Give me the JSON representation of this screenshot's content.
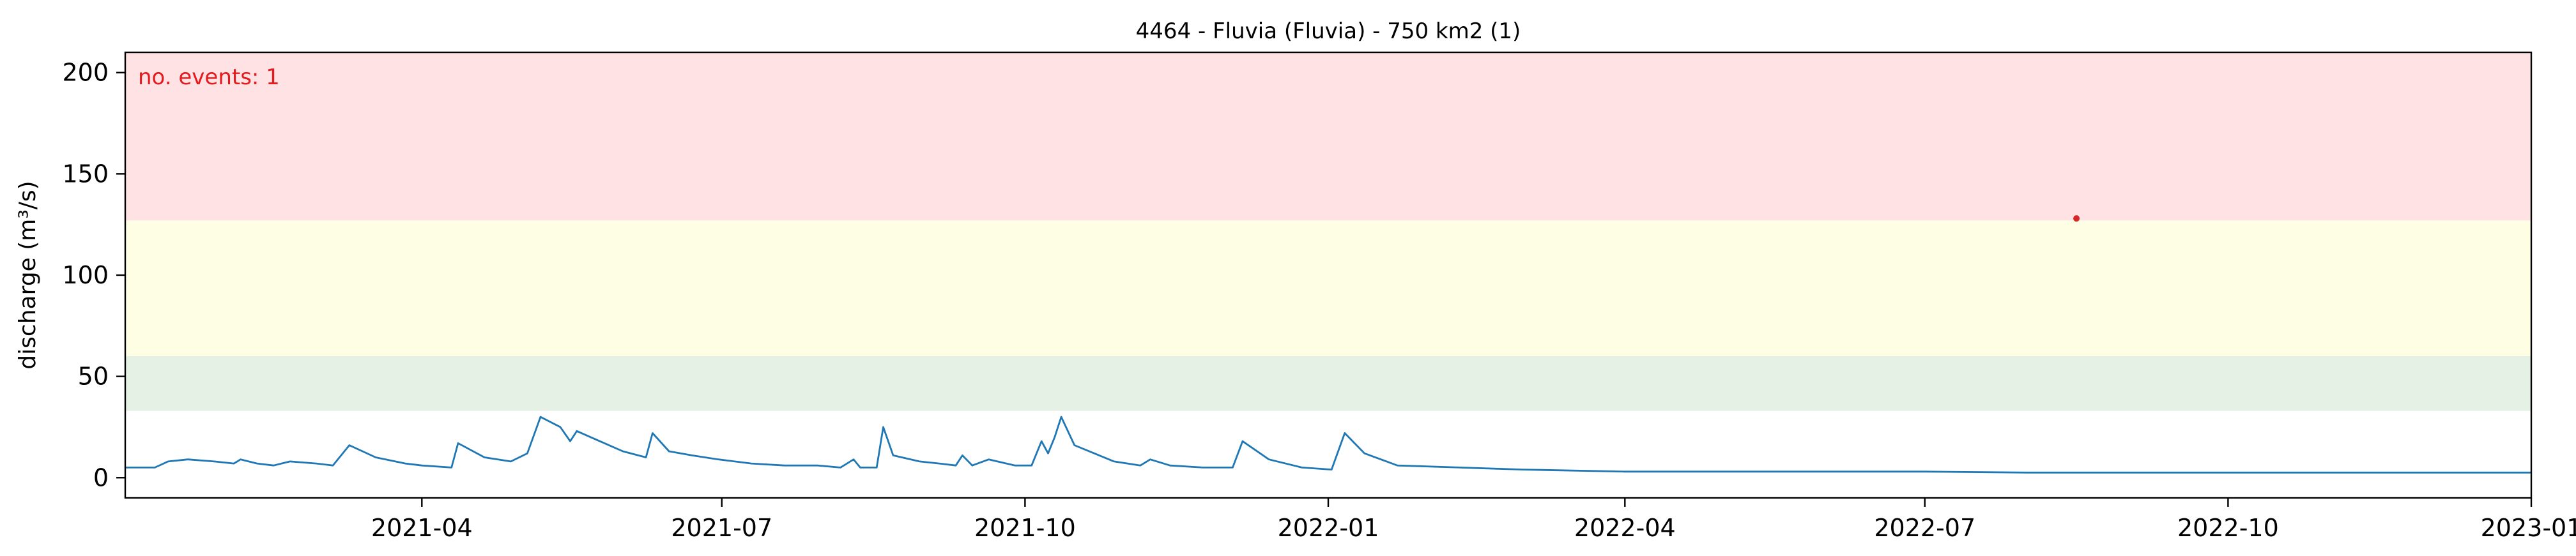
{
  "chart_data": {
    "type": "line",
    "title": "4464 - Fluvia (Fluvia) - 750 km2 (1)",
    "ylabel": "discharge (m³/s)",
    "xlabel": "",
    "annotation": "no. events: 1",
    "xlim": [
      "2021-01-01",
      "2023-01-01"
    ],
    "ylim": [
      -10,
      210
    ],
    "xticks": [
      {
        "date": "2021-04-01",
        "label": "2021-04"
      },
      {
        "date": "2021-07-01",
        "label": "2021-07"
      },
      {
        "date": "2021-10-01",
        "label": "2021-10"
      },
      {
        "date": "2022-01-01",
        "label": "2022-01"
      },
      {
        "date": "2022-04-01",
        "label": "2022-04"
      },
      {
        "date": "2022-07-01",
        "label": "2022-07"
      },
      {
        "date": "2022-10-01",
        "label": "2022-10"
      },
      {
        "date": "2023-01-01",
        "label": "2023-01"
      }
    ],
    "yticks": [
      0,
      50,
      100,
      150,
      200
    ],
    "bands": [
      {
        "from": 33,
        "to": 60,
        "color": "#e5f1e5"
      },
      {
        "from": 60,
        "to": 127,
        "color": "#fefee4"
      },
      {
        "from": 127,
        "to": 210,
        "color": "#fee2e4"
      }
    ],
    "series": [
      {
        "color": "#1f77b4",
        "points": [
          [
            "2021-01-01",
            5
          ],
          [
            "2021-01-10",
            5
          ],
          [
            "2021-01-14",
            8
          ],
          [
            "2021-01-20",
            9
          ],
          [
            "2021-01-28",
            8
          ],
          [
            "2021-02-03",
            7
          ],
          [
            "2021-02-05",
            9
          ],
          [
            "2021-02-10",
            7
          ],
          [
            "2021-02-15",
            6
          ],
          [
            "2021-02-20",
            8
          ],
          [
            "2021-02-28",
            7
          ],
          [
            "2021-03-05",
            6
          ],
          [
            "2021-03-10",
            16
          ],
          [
            "2021-03-18",
            10
          ],
          [
            "2021-03-27",
            7
          ],
          [
            "2021-04-01",
            6
          ],
          [
            "2021-04-10",
            5
          ],
          [
            "2021-04-12",
            17
          ],
          [
            "2021-04-20",
            10
          ],
          [
            "2021-04-28",
            8
          ],
          [
            "2021-05-03",
            12
          ],
          [
            "2021-05-07",
            30
          ],
          [
            "2021-05-13",
            25
          ],
          [
            "2021-05-16",
            18
          ],
          [
            "2021-05-18",
            23
          ],
          [
            "2021-05-25",
            18
          ],
          [
            "2021-06-01",
            13
          ],
          [
            "2021-06-08",
            10
          ],
          [
            "2021-06-10",
            22
          ],
          [
            "2021-06-15",
            13
          ],
          [
            "2021-06-22",
            11
          ],
          [
            "2021-06-30",
            9
          ],
          [
            "2021-07-10",
            7
          ],
          [
            "2021-07-20",
            6
          ],
          [
            "2021-07-30",
            6
          ],
          [
            "2021-08-06",
            5
          ],
          [
            "2021-08-10",
            9
          ],
          [
            "2021-08-12",
            5
          ],
          [
            "2021-08-17",
            5
          ],
          [
            "2021-08-19",
            25
          ],
          [
            "2021-08-22",
            11
          ],
          [
            "2021-08-30",
            8
          ],
          [
            "2021-09-05",
            7
          ],
          [
            "2021-09-10",
            6
          ],
          [
            "2021-09-12",
            11
          ],
          [
            "2021-09-15",
            6
          ],
          [
            "2021-09-20",
            9
          ],
          [
            "2021-09-28",
            6
          ],
          [
            "2021-10-03",
            6
          ],
          [
            "2021-10-06",
            18
          ],
          [
            "2021-10-08",
            12
          ],
          [
            "2021-10-10",
            20
          ],
          [
            "2021-10-12",
            30
          ],
          [
            "2021-10-16",
            16
          ],
          [
            "2021-10-22",
            12
          ],
          [
            "2021-10-28",
            8
          ],
          [
            "2021-11-05",
            6
          ],
          [
            "2021-11-08",
            9
          ],
          [
            "2021-11-14",
            6
          ],
          [
            "2021-11-24",
            5
          ],
          [
            "2021-12-03",
            5
          ],
          [
            "2021-12-06",
            18
          ],
          [
            "2021-12-14",
            9
          ],
          [
            "2021-12-24",
            5
          ],
          [
            "2022-01-02",
            4
          ],
          [
            "2022-01-06",
            22
          ],
          [
            "2022-01-12",
            12
          ],
          [
            "2022-01-22",
            6
          ],
          [
            "2022-02-10",
            5
          ],
          [
            "2022-03-01",
            4
          ],
          [
            "2022-04-01",
            3
          ],
          [
            "2022-05-01",
            3
          ],
          [
            "2022-06-01",
            3
          ],
          [
            "2022-07-01",
            3
          ],
          [
            "2022-08-01",
            2.5
          ],
          [
            "2022-09-03",
            2.5
          ],
          [
            "2022-10-01",
            2.5
          ],
          [
            "2022-11-01",
            2.5
          ],
          [
            "2022-12-01",
            2.5
          ],
          [
            "2023-01-01",
            2.5
          ]
        ]
      }
    ],
    "event_markers": [
      {
        "date": "2022-08-16",
        "value": 128,
        "color": "#d62728"
      }
    ]
  }
}
